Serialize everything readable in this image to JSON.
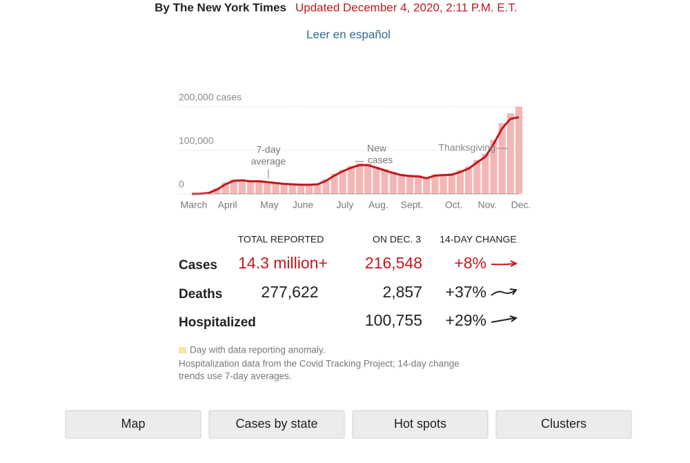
{
  "header": {
    "byline": "By The New York Times",
    "updated": "Updated December 4, 2020, 2:11 P.M. E.T.",
    "language_link": "Leer en español"
  },
  "chart_data": {
    "type": "bar_line",
    "categories": [
      "March",
      null,
      null,
      null,
      "April",
      null,
      null,
      null,
      null,
      "May",
      null,
      null,
      null,
      "June",
      null,
      null,
      null,
      null,
      "July",
      null,
      null,
      null,
      "Aug.",
      null,
      null,
      null,
      "Sept.",
      null,
      null,
      null,
      null,
      "Oct.",
      null,
      null,
      null,
      "Nov.",
      null,
      null,
      null,
      "Dec."
    ],
    "series": [
      {
        "name": "New cases",
        "color": "#f4b6b4",
        "values": [
          100,
          500,
          3000,
          13000,
          26000,
          33000,
          33000,
          31000,
          32000,
          29000,
          27000,
          25000,
          24000,
          23000,
          22000,
          24000,
          33000,
          46000,
          55000,
          64000,
          70000,
          69000,
          63000,
          57000,
          51000,
          46000,
          44000,
          43000,
          38000,
          45000,
          46000,
          48000,
          55000,
          63000,
          78000,
          92000,
          124000,
          162000,
          185000,
          200000
        ]
      },
      {
        "name": "7-day average",
        "color": "#c4161c",
        "values": [
          0,
          300,
          2000,
          10000,
          22000,
          30000,
          31000,
          29000,
          29000,
          27000,
          25000,
          23000,
          22000,
          21000,
          21000,
          22000,
          30000,
          42000,
          52000,
          60000,
          66000,
          66000,
          60000,
          54000,
          48000,
          43000,
          41000,
          40000,
          36000,
          42000,
          43000,
          44000,
          50000,
          58000,
          72000,
          85000,
          115000,
          150000,
          172000,
          176000
        ]
      }
    ],
    "ylim": [
      0,
      220000
    ],
    "yticks": [
      0,
      {
        "value": 100000,
        "label": "100,000"
      },
      {
        "value": 200000,
        "label": "200,000 cases"
      }
    ],
    "grid": true,
    "annotations": {
      "average": [
        "7-day",
        "average"
      ],
      "new_cases": [
        "New",
        "cases"
      ],
      "thanksgiving": "Thanksgiving"
    }
  },
  "table": {
    "headers": [
      "TOTAL REPORTED",
      "ON DEC. 3",
      "14-DAY CHANGE"
    ],
    "rows": [
      {
        "label": "Cases",
        "total": "14.3 million+",
        "daily": "216,548",
        "change": "+8%"
      },
      {
        "label": "Deaths",
        "total": "277,622",
        "daily": "2,857",
        "change": "+37%"
      },
      {
        "label": "Hospitalized",
        "daily": "100,755",
        "change": "+29%"
      }
    ]
  },
  "notes": {
    "anomaly": "Day with data reporting anomaly.",
    "source": [
      "Hospitalization data from the Covid Tracking Project; 14-day change",
      "trends use 7-day averages."
    ]
  },
  "buttons": [
    "Map",
    "Cases by state",
    "Hot spots",
    "Clusters"
  ]
}
